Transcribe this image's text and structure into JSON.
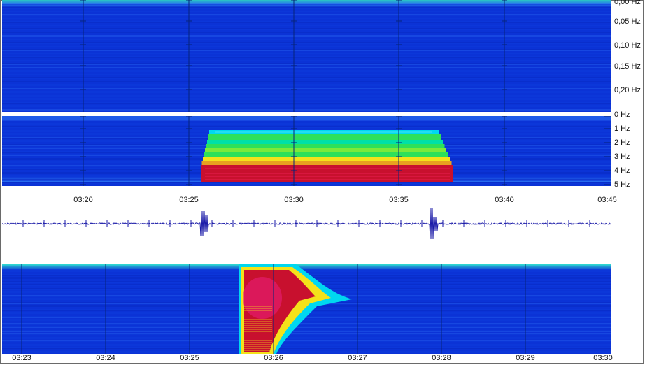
{
  "spectrogram_low": {
    "freq_labels": [
      "0,00 Hz",
      "0,05 Hz",
      "0,10 Hz",
      "0,15 Hz",
      "0,20 Hz"
    ]
  },
  "spectrogram_main": {
    "freq_labels": [
      "0 Hz",
      "1 Hz",
      "2 Hz",
      "3 Hz",
      "4 Hz",
      "5 Hz"
    ],
    "time_labels": [
      "03:20",
      "03:25",
      "03:30",
      "03:35",
      "03:40",
      "03:45"
    ]
  },
  "spectrogram_zoom": {
    "time_labels": [
      "03:23",
      "03:24",
      "03:25",
      "03:26",
      "03:27",
      "03:28",
      "03:29",
      "03:30"
    ]
  },
  "colors": {
    "background_blue": "#0b33d6",
    "cyan": "#00d8f0",
    "green": "#2ee05a",
    "yellow": "#f4e21a",
    "red": "#c8102e",
    "magenta": "#e81e78",
    "trace": "#1a1aa8"
  }
}
